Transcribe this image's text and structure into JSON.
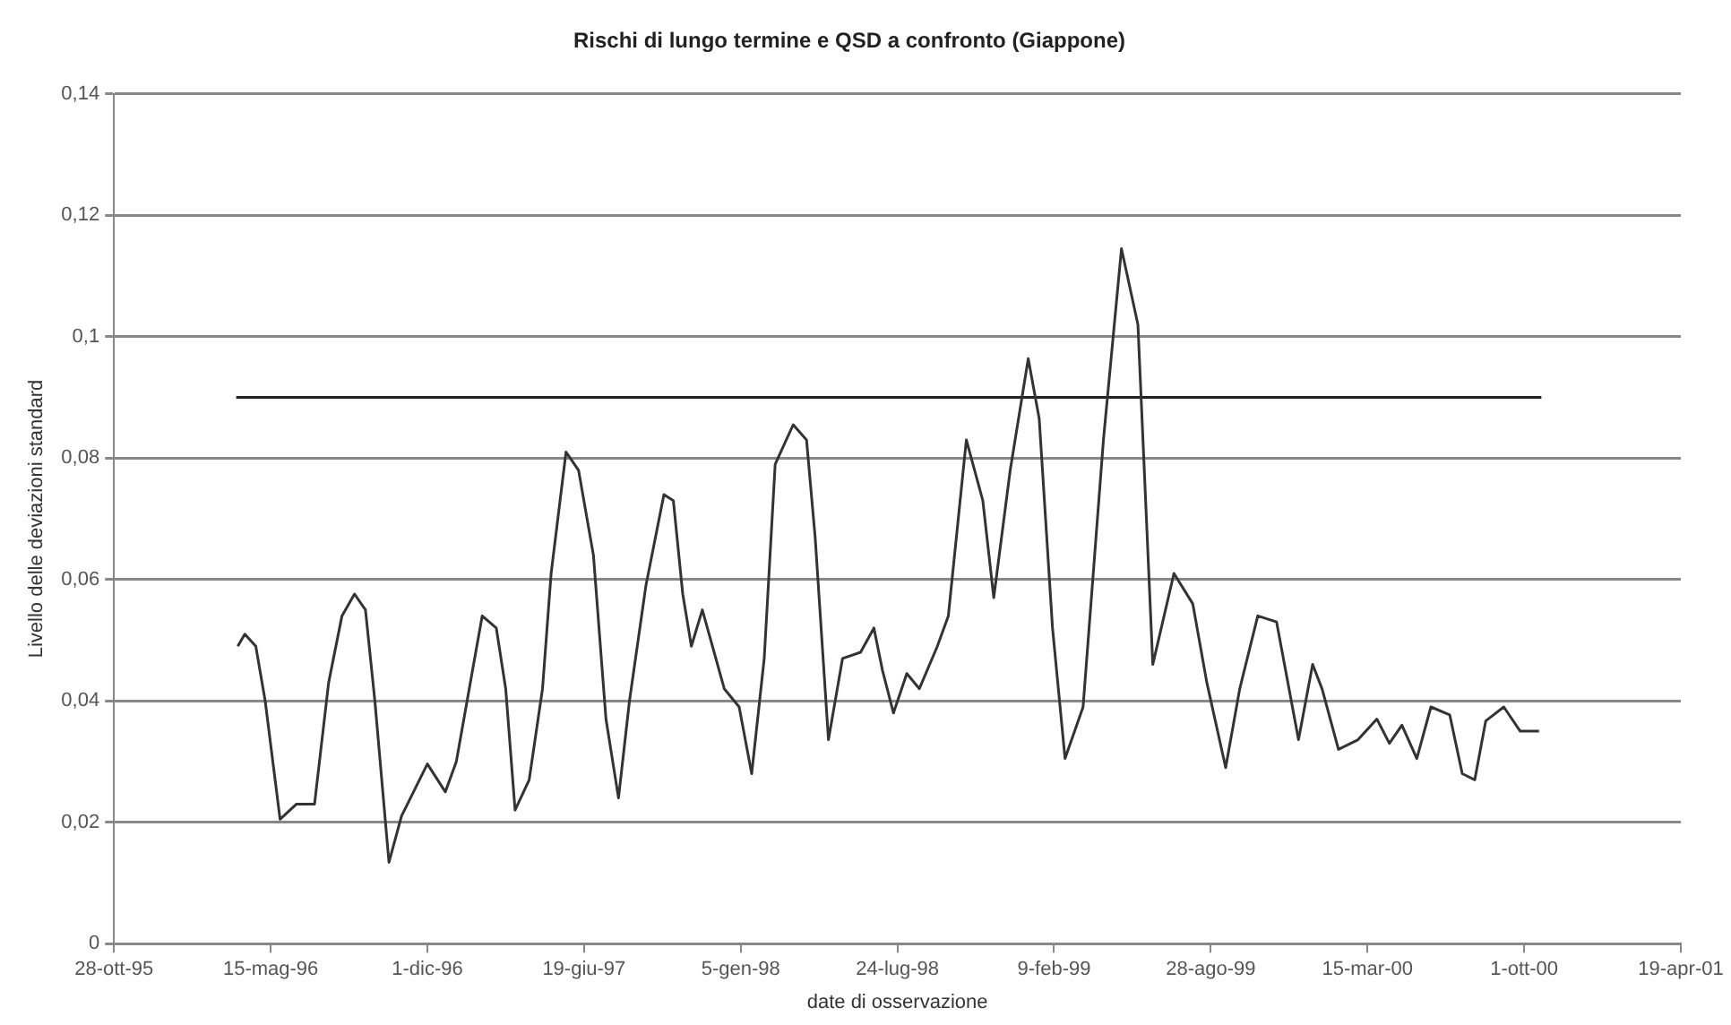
{
  "chart_data": {
    "type": "line",
    "title": "Rischi di lungo termine e QSD a confronto (Giappone)",
    "xlabel": "date di osservazione",
    "ylabel": "Livello delle deviazioni standard",
    "series": [
      {
        "color": "#333333",
        "x": [
          "1996-04-03",
          "1996-04-12",
          "1996-04-26",
          "1996-05-08",
          "1996-05-27",
          "1996-06-17",
          "1996-07-10",
          "1996-07-28",
          "1996-08-14",
          "1996-08-30",
          "1996-09-13",
          "1996-09-25",
          "1996-10-13",
          "1996-10-29",
          "1996-12-01",
          "1996-12-24",
          "1997-01-07",
          "1997-02-09",
          "1997-02-27",
          "1997-03-11",
          "1997-03-23",
          "1997-04-10",
          "1997-04-27",
          "1997-05-08",
          "1997-05-27",
          "1997-06-12",
          "1997-07-01",
          "1997-07-17",
          "1997-08-02",
          "1997-08-16",
          "1997-09-06",
          "1997-09-29",
          "1997-10-11",
          "1997-10-23",
          "1997-11-03",
          "1997-11-17",
          "1997-12-15",
          "1998-01-03",
          "1998-01-19",
          "1998-02-04",
          "1998-02-18",
          "1998-03-13",
          "1998-03-30",
          "1998-04-10",
          "1998-04-27",
          "1998-05-15",
          "1998-06-07",
          "1998-06-24",
          "1998-07-05",
          "1998-07-19",
          "1998-08-05",
          "1998-08-21",
          "1998-09-13",
          "1998-09-27",
          "1998-10-20",
          "1998-11-10",
          "1998-11-24",
          "1998-12-15",
          "1999-01-07",
          "1999-01-21",
          "1999-02-07",
          "1999-02-23",
          "1999-03-18",
          "1999-04-13",
          "1999-05-06",
          "1999-05-27",
          "1999-06-15",
          "1999-07-12",
          "1999-08-05",
          "1999-08-23",
          "1999-09-16",
          "1999-10-04",
          "1999-10-27",
          "1999-11-20",
          "1999-12-18",
          "2000-01-05",
          "2000-01-17",
          "2000-02-07",
          "2000-03-03",
          "2000-03-27",
          "2000-04-12",
          "2000-04-28",
          "2000-05-17",
          "2000-06-04",
          "2000-06-28",
          "2000-07-14",
          "2000-07-30",
          "2000-08-13",
          "2000-09-05",
          "2000-09-26",
          "2000-10-20"
        ],
        "values": [
          0.049,
          0.051,
          0.049,
          0.04,
          0.0205,
          0.023,
          0.023,
          0.043,
          0.054,
          0.0576,
          0.055,
          0.04,
          0.0134,
          0.021,
          0.0296,
          0.025,
          0.03,
          0.054,
          0.052,
          0.042,
          0.022,
          0.027,
          0.042,
          0.061,
          0.081,
          0.078,
          0.064,
          0.037,
          0.024,
          0.04,
          0.059,
          0.074,
          0.073,
          0.0576,
          0.049,
          0.055,
          0.042,
          0.039,
          0.028,
          0.047,
          0.079,
          0.0855,
          0.083,
          0.067,
          0.0336,
          0.047,
          0.048,
          0.052,
          0.045,
          0.038,
          0.0445,
          0.042,
          0.049,
          0.054,
          0.083,
          0.073,
          0.057,
          0.078,
          0.0964,
          0.0865,
          0.052,
          0.0305,
          0.039,
          0.083,
          0.1145,
          0.102,
          0.046,
          0.061,
          0.056,
          0.043,
          0.029,
          0.042,
          0.054,
          0.053,
          0.0336,
          0.046,
          0.042,
          0.032,
          0.0336,
          0.037,
          0.033,
          0.036,
          0.0305,
          0.039,
          0.0377,
          0.028,
          0.027,
          0.0367,
          0.039,
          0.035,
          0.035
        ]
      },
      {
        "color": "#222222",
        "x": [
          "1996-04-01",
          "2000-10-23"
        ],
        "values": [
          0.09,
          0.09
        ]
      }
    ],
    "xlim": [
      "1995-10-28",
      "2001-04-19"
    ],
    "xticks": [
      {
        "value": "1995-10-28",
        "label": "28-ott-95"
      },
      {
        "value": "1996-05-15",
        "label": "15-mag-96"
      },
      {
        "value": "1996-12-01",
        "label": "1-dic-96"
      },
      {
        "value": "1997-06-19",
        "label": "19-giu-97"
      },
      {
        "value": "1998-01-05",
        "label": "5-gen-98"
      },
      {
        "value": "1998-07-24",
        "label": "24-lug-98"
      },
      {
        "value": "1999-02-09",
        "label": "9-feb-99"
      },
      {
        "value": "1999-08-28",
        "label": "28-ago-99"
      },
      {
        "value": "2000-03-15",
        "label": "15-mar-00"
      },
      {
        "value": "2000-10-01",
        "label": "1-ott-00"
      },
      {
        "value": "2001-04-19",
        "label": "19-apr-01"
      }
    ],
    "ylim": [
      0,
      0.14
    ],
    "yticks": [
      0,
      {
        "value": 0.02,
        "label": "0,02"
      },
      {
        "value": 0.04,
        "label": "0,04"
      },
      {
        "value": 0.06,
        "label": "0,06"
      },
      {
        "value": 0.08,
        "label": "0,08"
      },
      {
        "value": 0.1,
        "label": "0,1"
      },
      {
        "value": 0.12,
        "label": "0,12"
      },
      {
        "value": 0.14,
        "label": "0,14"
      }
    ],
    "grid": "y",
    "legend": false,
    "marker": "none",
    "line_style": "solid"
  }
}
